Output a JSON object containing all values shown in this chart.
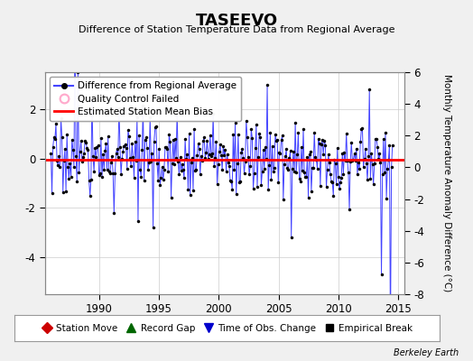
{
  "title": "TASEEVO",
  "subtitle": "Difference of Station Temperature Data from Regional Average",
  "ylabel": "Monthly Temperature Anomaly Difference (°C)",
  "xlabel_years": [
    1990,
    1995,
    2000,
    2005,
    2010,
    2015
  ],
  "xlim": [
    1985.5,
    2015.5
  ],
  "ylim_left": [
    -5.5,
    3.5
  ],
  "ylim_right": [
    -8,
    6
  ],
  "left_yticks": [
    -4,
    -2,
    0,
    2
  ],
  "right_yticks": [
    -8,
    -6,
    -4,
    -2,
    0,
    2,
    4,
    6
  ],
  "bias_value": -0.05,
  "background_color": "#f0f0f0",
  "plot_bg_color": "#ffffff",
  "line_color": "#4444ff",
  "bias_color": "#ff0000",
  "marker_color": "#000000",
  "grid_color": "#cccccc",
  "legend1_entries": [
    {
      "label": "Difference from Regional Average"
    },
    {
      "label": "Quality Control Failed"
    },
    {
      "label": "Estimated Station Mean Bias"
    }
  ],
  "legend2_entries": [
    {
      "label": "Station Move",
      "color": "#cc0000"
    },
    {
      "label": "Record Gap",
      "color": "#006600"
    },
    {
      "label": "Time of Obs. Change",
      "color": "#0000cc"
    },
    {
      "label": "Empirical Break",
      "color": "#000000"
    }
  ],
  "watermark": "Berkeley Earth",
  "seed": 17,
  "start_year": 1986.0,
  "end_year": 2014.5,
  "noise_scale": 0.75
}
